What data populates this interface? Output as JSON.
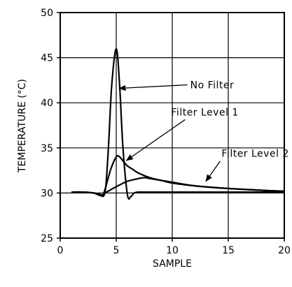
{
  "chart_data": {
    "type": "line",
    "title": "",
    "xlabel": "SAMPLE",
    "ylabel": "TEMPERATURE (°C)",
    "xlim": [
      0,
      20
    ],
    "ylim": [
      25,
      50
    ],
    "x_ticks": [
      0,
      5,
      10,
      15,
      20
    ],
    "y_ticks": [
      25,
      30,
      35,
      40,
      45,
      50
    ],
    "grid": true,
    "colors": {
      "line": "#000000",
      "grid": "#000000",
      "background": "#ffffff"
    },
    "series": [
      {
        "name": "No Filter",
        "x": [
          1,
          2,
          3,
          3.5,
          4,
          4.3,
          4.6,
          5,
          5.3,
          5.6,
          6,
          6.3,
          6.6,
          7,
          8,
          10,
          15,
          20
        ],
        "y": [
          30.1,
          30.1,
          30.0,
          29.8,
          30.1,
          35,
          42,
          46,
          42,
          35,
          29.8,
          29.6,
          30.0,
          30.1,
          30.1,
          30.1,
          30.1,
          30.1
        ]
      },
      {
        "name": "Filter Level 1",
        "x": [
          1,
          2,
          3,
          3.7,
          4,
          4.5,
          5,
          5.3,
          5.7,
          6,
          6.5,
          7,
          8,
          9,
          10,
          12,
          15,
          18,
          20
        ],
        "y": [
          30.1,
          30.1,
          30.0,
          29.7,
          30.4,
          32.6,
          34.0,
          34.0,
          33.4,
          33.0,
          32.6,
          32.2,
          31.7,
          31.4,
          31.1,
          30.8,
          30.5,
          30.3,
          30.2
        ]
      },
      {
        "name": "Filter Level 2",
        "x": [
          1,
          2,
          3,
          3.8,
          4,
          5,
          6,
          7,
          7.5,
          8,
          9,
          10,
          12,
          15,
          18,
          20
        ],
        "y": [
          30.1,
          30.1,
          30.0,
          29.8,
          30.0,
          30.7,
          31.3,
          31.6,
          31.7,
          31.6,
          31.4,
          31.2,
          30.8,
          30.5,
          30.3,
          30.2
        ]
      }
    ],
    "annotations": [
      {
        "text": "No Filter",
        "label_x": 11.6,
        "label_y": 41.6,
        "target_x": 5.25,
        "target_y": 41.6
      },
      {
        "text": "Filter Level 1",
        "label_x": 9.9,
        "label_y": 38.6,
        "target_x": 5.9,
        "target_y": 33.6
      },
      {
        "text": "Filter Level 2",
        "label_x": 14.4,
        "label_y": 34.0,
        "target_x": 13.0,
        "target_y": 31.3
      }
    ]
  }
}
